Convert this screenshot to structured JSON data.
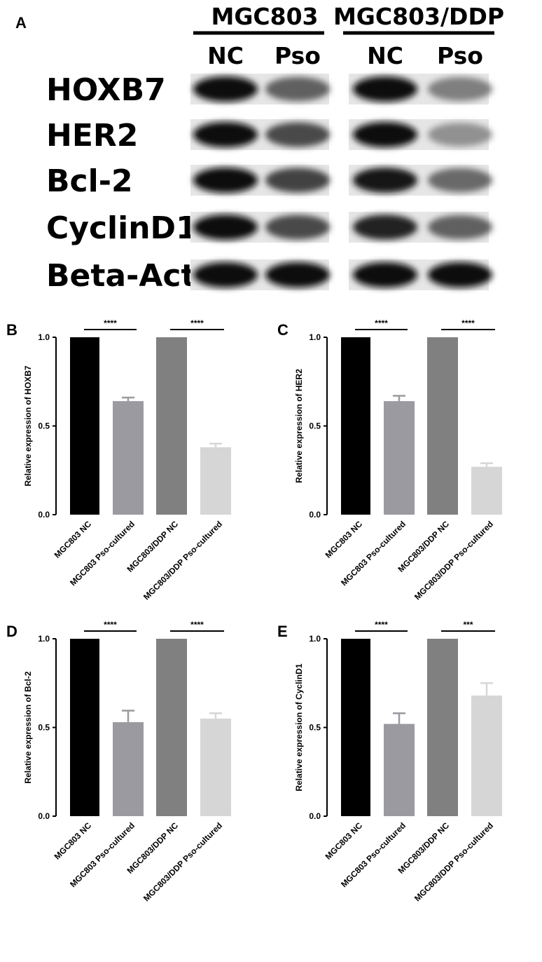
{
  "blot": {
    "panel_label": "A",
    "groups": [
      {
        "title": "MGC803",
        "lanes": [
          "NC",
          "Pso"
        ]
      },
      {
        "title": "MGC803/DDP",
        "lanes": [
          "NC",
          "Pso"
        ]
      }
    ],
    "proteins": [
      "HOXB7",
      "HER2",
      "Bcl-2",
      "CyclinD1",
      "Beta-Actin"
    ],
    "band_intensity_description": "relative darkness per lane (NC, Pso, NC, Pso)",
    "band_intensity": [
      [
        1.0,
        0.62,
        1.0,
        0.48
      ],
      [
        1.0,
        0.72,
        1.0,
        0.4
      ],
      [
        1.0,
        0.75,
        0.95,
        0.58
      ],
      [
        0.98,
        0.72,
        0.9,
        0.62
      ],
      [
        1.0,
        1.0,
        1.0,
        1.0
      ]
    ]
  },
  "chart_data": [
    {
      "panel_label": "B",
      "type": "bar",
      "categories": [
        "MGC803 NC",
        "MGC803 Pso-cultured",
        "MGC803/DDP NC",
        "MGC803/DDP Pso-cultured"
      ],
      "values": [
        1.0,
        0.64,
        1.0,
        0.38
      ],
      "errors": [
        0,
        0.02,
        0,
        0.02
      ],
      "ylabel": "Relative expression of HOXB7",
      "ylim": [
        0,
        1.0
      ],
      "yticks": [
        "0.0",
        "0.5",
        "1.0"
      ],
      "colors": [
        "#000000",
        "#9a9aa0",
        "#808080",
        "#d6d6d6"
      ],
      "significance": [
        {
          "from": 0,
          "to": 1,
          "label": "****"
        },
        {
          "from": 2,
          "to": 3,
          "label": "****"
        }
      ]
    },
    {
      "panel_label": "C",
      "type": "bar",
      "categories": [
        "MGC803 NC",
        "MGC803 Pso-cultured",
        "MGC803/DDP NC",
        "MGC803/DDP Pso-cultured"
      ],
      "values": [
        1.0,
        0.64,
        1.0,
        0.27
      ],
      "errors": [
        0,
        0.03,
        0,
        0.02
      ],
      "ylabel": "Relative expression of HER2",
      "ylim": [
        0,
        1.0
      ],
      "yticks": [
        "0.0",
        "0.5",
        "1.0"
      ],
      "colors": [
        "#000000",
        "#9a9aa0",
        "#808080",
        "#d6d6d6"
      ],
      "significance": [
        {
          "from": 0,
          "to": 1,
          "label": "****"
        },
        {
          "from": 2,
          "to": 3,
          "label": "****"
        }
      ]
    },
    {
      "panel_label": "D",
      "type": "bar",
      "categories": [
        "MGC803 NC",
        "MGC803 Pso-cultured",
        "MGC803/DDP NC",
        "MGC803/DDP Pso-cultured"
      ],
      "values": [
        1.0,
        0.53,
        1.0,
        0.55
      ],
      "errors": [
        0,
        0.065,
        0,
        0.03
      ],
      "ylabel": "Relative expression of Bcl-2",
      "ylim": [
        0,
        1.0
      ],
      "yticks": [
        "0.0",
        "0.5",
        "1.0"
      ],
      "colors": [
        "#000000",
        "#9a9aa0",
        "#808080",
        "#d6d6d6"
      ],
      "significance": [
        {
          "from": 0,
          "to": 1,
          "label": "****"
        },
        {
          "from": 2,
          "to": 3,
          "label": "****"
        }
      ]
    },
    {
      "panel_label": "E",
      "type": "bar",
      "categories": [
        "MGC803 NC",
        "MGC803 Pso-cultured",
        "MGC803/DDP NC",
        "MGC803/DDP Pso-cultured"
      ],
      "values": [
        1.0,
        0.52,
        1.0,
        0.68
      ],
      "errors": [
        0,
        0.06,
        0,
        0.07
      ],
      "ylabel": "Relative expression of CyclinD1",
      "ylim": [
        0,
        1.0
      ],
      "yticks": [
        "0.0",
        "0.5",
        "1.0"
      ],
      "colors": [
        "#000000",
        "#9a9aa0",
        "#808080",
        "#d6d6d6"
      ],
      "significance": [
        {
          "from": 0,
          "to": 1,
          "label": "****"
        },
        {
          "from": 2,
          "to": 3,
          "label": "***"
        }
      ]
    }
  ]
}
